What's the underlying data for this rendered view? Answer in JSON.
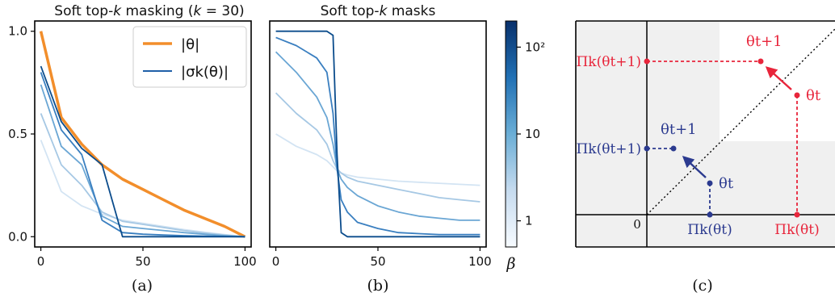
{
  "captions": {
    "a": "(a)",
    "b": "(b)",
    "c": "(c)"
  },
  "chart_data": [
    {
      "type": "line",
      "title": "Soft top-k masking (k = 30)",
      "xlim": [
        -3,
        103
      ],
      "ylim": [
        -0.05,
        1.05
      ],
      "xticks": [
        "0",
        "50",
        "100"
      ],
      "yticks": [
        "0.0",
        "0.5",
        "1.0"
      ],
      "legend_position": "top-right",
      "legend": [
        "|θ|",
        "|σk(θ)|"
      ],
      "x": [
        0,
        10,
        20,
        30,
        40,
        50,
        60,
        70,
        80,
        90,
        100
      ],
      "series": [
        {
          "name": "|θ|",
          "color": "#f28e2b",
          "values": [
            1.0,
            0.58,
            0.45,
            0.35,
            0.28,
            0.23,
            0.18,
            0.13,
            0.09,
            0.05,
            0.0
          ]
        },
        {
          "name": "|σk(θ)|",
          "beta": 0.5,
          "color": "#d3e4f3",
          "values": [
            0.47,
            0.22,
            0.15,
            0.11,
            0.08,
            0.065,
            0.05,
            0.035,
            0.022,
            0.01,
            0.0
          ]
        },
        {
          "name": "|σk(θ)|",
          "beta": 2,
          "color": "#a6c8e4",
          "values": [
            0.6,
            0.35,
            0.25,
            0.12,
            0.075,
            0.06,
            0.045,
            0.03,
            0.018,
            0.008,
            0.0
          ]
        },
        {
          "name": "|σk(θ)|",
          "beta": 8,
          "color": "#6aa6d4",
          "values": [
            0.74,
            0.44,
            0.35,
            0.1,
            0.05,
            0.04,
            0.03,
            0.02,
            0.012,
            0.005,
            0.0
          ]
        },
        {
          "name": "|σk(θ)|",
          "beta": 30,
          "color": "#3a7fc0",
          "values": [
            0.8,
            0.52,
            0.4,
            0.08,
            0.02,
            0.012,
            0.008,
            0.005,
            0.003,
            0.001,
            0.0
          ]
        },
        {
          "name": "|σk(θ)|",
          "beta": 200,
          "color": "#0b4c8c",
          "values": [
            0.83,
            0.56,
            0.43,
            0.35,
            0.0,
            0.0,
            0.0,
            0.0,
            0.0,
            0.0,
            0.0
          ]
        }
      ]
    },
    {
      "type": "line",
      "title": "Soft top-k masks",
      "xlim": [
        -3,
        103
      ],
      "ylim": [
        -0.05,
        1.05
      ],
      "xticks": [
        "0",
        "50",
        "100"
      ],
      "x": [
        0,
        10,
        20,
        25,
        28,
        30,
        32,
        35,
        40,
        50,
        60,
        70,
        80,
        90,
        100
      ],
      "series": [
        {
          "beta": 0.5,
          "color": "#d3e4f3",
          "values": [
            0.5,
            0.44,
            0.4,
            0.37,
            0.34,
            0.32,
            0.31,
            0.3,
            0.29,
            0.28,
            0.27,
            0.265,
            0.26,
            0.255,
            0.25
          ]
        },
        {
          "beta": 2,
          "color": "#a6c8e4",
          "values": [
            0.7,
            0.6,
            0.52,
            0.45,
            0.37,
            0.33,
            0.31,
            0.29,
            0.27,
            0.25,
            0.23,
            0.21,
            0.19,
            0.18,
            0.17
          ]
        },
        {
          "beta": 8,
          "color": "#6aa6d4",
          "values": [
            0.9,
            0.8,
            0.68,
            0.58,
            0.45,
            0.33,
            0.28,
            0.24,
            0.2,
            0.15,
            0.12,
            0.1,
            0.09,
            0.08,
            0.08
          ]
        },
        {
          "beta": 30,
          "color": "#3a7fc0",
          "values": [
            0.97,
            0.93,
            0.87,
            0.8,
            0.6,
            0.33,
            0.18,
            0.12,
            0.07,
            0.04,
            0.02,
            0.015,
            0.01,
            0.01,
            0.01
          ]
        },
        {
          "beta": 200,
          "color": "#0b4c8c",
          "values": [
            1.0,
            1.0,
            1.0,
            1.0,
            0.98,
            0.4,
            0.02,
            0.0,
            0.0,
            0.0,
            0.0,
            0.0,
            0.0,
            0.0,
            0.0
          ]
        }
      ],
      "colorbar": {
        "label": "β",
        "scale": "log",
        "range": [
          0.5,
          200
        ],
        "ticks": [
          {
            "value": 1,
            "label": "1"
          },
          {
            "value": 10,
            "label": "10"
          },
          {
            "value": 100,
            "label": "10²"
          }
        ],
        "color_low": "#f7fbff",
        "color_high": "#08306b"
      }
    },
    {
      "type": "diagram",
      "labels": {
        "origin": "0",
        "theta_t_red": "θt",
        "theta_t1_red": "θt+1",
        "proj_red_x": "Πk(θt)",
        "proj_red_y": "Πk(θt+1)",
        "theta_t_blue": "θt",
        "theta_t1_blue": "θt+1",
        "proj_blue_x": "Πk(θt)",
        "proj_blue_y": "Πk(θt+1)"
      },
      "colors": {
        "red": "#e8253b",
        "blue": "#2b3a8f",
        "shade": "#f0f0f0"
      }
    }
  ]
}
